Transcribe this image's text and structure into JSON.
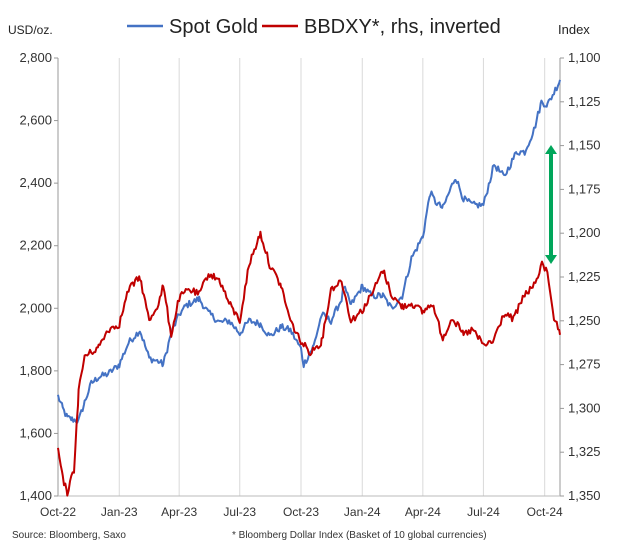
{
  "chart_data": {
    "type": "line",
    "left_axis_unit": "USD/oz.",
    "right_axis_unit": "Index",
    "source": "Source: Bloomberg, Saxo",
    "footnote": "* Bloomberg Dollar Index (Basket of 10 global currencies)",
    "x_ticks": [
      "Oct-22",
      "Jan-23",
      "Apr-23",
      "Jul-23",
      "Oct-23",
      "Jan-24",
      "Apr-24",
      "Jul-24",
      "Oct-24"
    ],
    "x_tick_dates": [
      "2022-10-01",
      "2023-01-01",
      "2023-04-01",
      "2023-07-01",
      "2023-10-01",
      "2024-01-01",
      "2024-04-01",
      "2024-07-01",
      "2024-10-01"
    ],
    "x_range": [
      "2022-10-01",
      "2024-10-24"
    ],
    "ylim_left": [
      1400,
      2800
    ],
    "yticks_left": [
      "1,400",
      "1,600",
      "1,800",
      "2,000",
      "2,200",
      "2,400",
      "2,600",
      "2,800"
    ],
    "ylim_right": [
      1100,
      1350
    ],
    "right_inverted": true,
    "yticks_right": [
      "1,100",
      "1,125",
      "1,150",
      "1,175",
      "1,200",
      "1,225",
      "1,250",
      "1,275",
      "1,300",
      "1,325",
      "1,350"
    ],
    "grid": "vertical",
    "legend_position": "top",
    "colors": {
      "gold": "#4472c4",
      "bbdxy": "#c00000",
      "arrow": "#00a65a"
    },
    "series": [
      {
        "name": "Spot Gold",
        "axis": "left",
        "x": [
          "2022-10-01",
          "2022-10-08",
          "2022-10-15",
          "2022-10-22",
          "2022-11-01",
          "2022-11-10",
          "2022-11-20",
          "2022-12-01",
          "2022-12-15",
          "2023-01-01",
          "2023-01-15",
          "2023-02-01",
          "2023-02-15",
          "2023-03-01",
          "2023-03-08",
          "2023-03-20",
          "2023-04-01",
          "2023-04-12",
          "2023-05-01",
          "2023-05-15",
          "2023-06-01",
          "2023-06-15",
          "2023-07-01",
          "2023-07-15",
          "2023-08-01",
          "2023-08-15",
          "2023-09-01",
          "2023-09-15",
          "2023-10-01",
          "2023-10-05",
          "2023-10-20",
          "2023-11-01",
          "2023-11-15",
          "2023-12-01",
          "2023-12-04",
          "2023-12-15",
          "2024-01-01",
          "2024-01-15",
          "2024-02-01",
          "2024-02-14",
          "2024-03-01",
          "2024-03-15",
          "2024-04-01",
          "2024-04-12",
          "2024-04-20",
          "2024-05-01",
          "2024-05-20",
          "2024-06-01",
          "2024-06-15",
          "2024-07-01",
          "2024-07-17",
          "2024-08-01",
          "2024-08-20",
          "2024-09-01",
          "2024-09-15",
          "2024-09-26",
          "2024-10-05",
          "2024-10-15",
          "2024-10-24"
        ],
        "y": [
          1720,
          1680,
          1650,
          1645,
          1640,
          1700,
          1760,
          1780,
          1790,
          1820,
          1890,
          1930,
          1840,
          1830,
          1820,
          1920,
          1980,
          2010,
          2030,
          1985,
          1955,
          1960,
          1920,
          1960,
          1950,
          1910,
          1940,
          1930,
          1870,
          1820,
          1880,
          1980,
          1960,
          2030,
          2070,
          2010,
          2070,
          2040,
          2040,
          2000,
          2040,
          2160,
          2230,
          2370,
          2340,
          2320,
          2420,
          2350,
          2330,
          2330,
          2460,
          2420,
          2500,
          2500,
          2570,
          2660,
          2650,
          2690,
          2730
        ]
      },
      {
        "name": "BBDXY*, rhs, inverted",
        "axis": "right",
        "x": [
          "2022-10-01",
          "2022-10-08",
          "2022-10-15",
          "2022-10-25",
          "2022-11-01",
          "2022-11-10",
          "2022-11-20",
          "2022-12-01",
          "2022-12-15",
          "2023-01-01",
          "2023-01-15",
          "2023-02-01",
          "2023-02-15",
          "2023-03-01",
          "2023-03-08",
          "2023-03-20",
          "2023-04-01",
          "2023-04-15",
          "2023-05-01",
          "2023-05-15",
          "2023-06-01",
          "2023-06-15",
          "2023-07-01",
          "2023-07-15",
          "2023-08-01",
          "2023-08-15",
          "2023-09-01",
          "2023-09-15",
          "2023-10-01",
          "2023-10-15",
          "2023-11-01",
          "2023-11-15",
          "2023-12-01",
          "2023-12-15",
          "2024-01-01",
          "2024-01-15",
          "2024-02-01",
          "2024-02-15",
          "2024-03-01",
          "2024-03-15",
          "2024-04-01",
          "2024-04-15",
          "2024-05-01",
          "2024-05-15",
          "2024-06-01",
          "2024-06-15",
          "2024-07-01",
          "2024-07-15",
          "2024-08-01",
          "2024-08-15",
          "2024-09-01",
          "2024-09-15",
          "2024-09-27",
          "2024-10-05",
          "2024-10-15",
          "2024-10-24"
        ],
        "y": [
          1323,
          1340,
          1348,
          1335,
          1290,
          1270,
          1268,
          1265,
          1255,
          1252,
          1232,
          1225,
          1250,
          1240,
          1230,
          1258,
          1237,
          1232,
          1235,
          1223,
          1227,
          1240,
          1250,
          1218,
          1200,
          1218,
          1230,
          1250,
          1262,
          1268,
          1262,
          1232,
          1227,
          1250,
          1244,
          1235,
          1221,
          1236,
          1242,
          1240,
          1245,
          1240,
          1260,
          1248,
          1258,
          1255,
          1264,
          1262,
          1246,
          1249,
          1235,
          1230,
          1218,
          1222,
          1248,
          1258
        ]
      }
    ],
    "annotation": "double-headed vertical arrow highlighting the gap between the two lines"
  }
}
